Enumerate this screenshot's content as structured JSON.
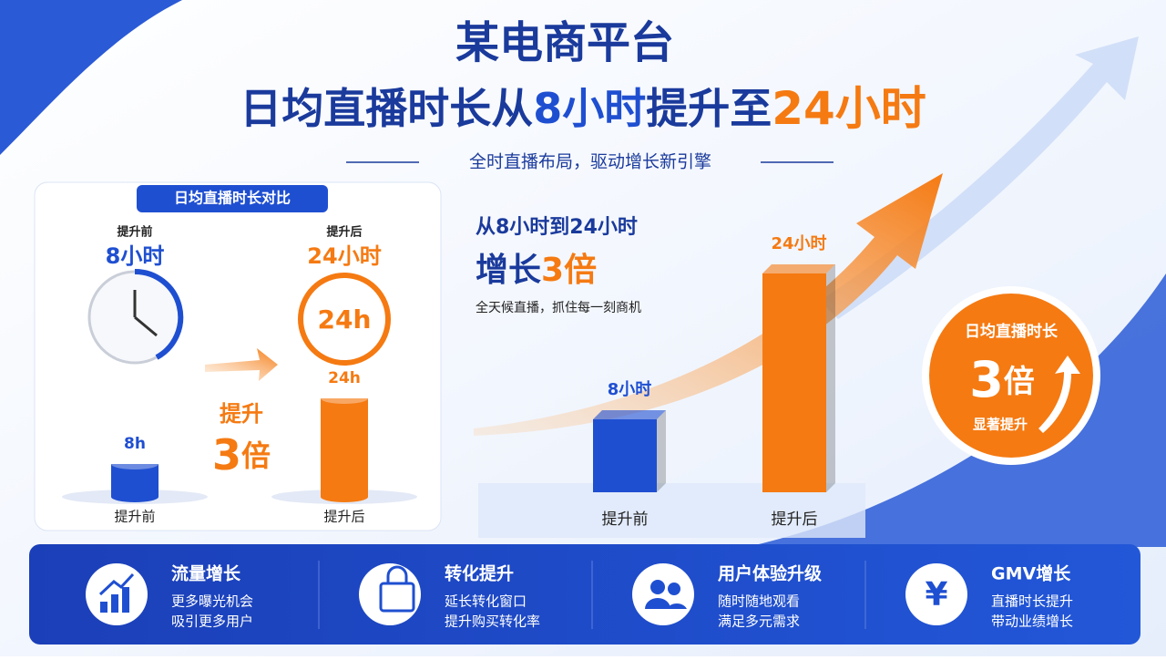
{
  "header": {
    "title": "某电商平台",
    "headline": [
      "日均直播时长从",
      "8小时",
      "提升至",
      "24小时"
    ],
    "subtitle": "全时直播布局，驱动增长新引擎"
  },
  "left_panel": {
    "title": "日均直播时长对比",
    "before_label": "提升前",
    "before_time": "8小时",
    "after_label": "提升后",
    "after_time": "24小时",
    "clock_text": "24h",
    "lift_word": "提升",
    "lift_number": "3",
    "lift_unit": "倍",
    "chart": {
      "type": "bar",
      "categories": [
        "提升前",
        "提升后"
      ],
      "values": [
        8,
        24
      ],
      "value_labels": [
        "8h",
        "24h"
      ],
      "colors": [
        "#1f4fd1",
        "#f57a12"
      ]
    }
  },
  "right_panel": {
    "heading": "从8小时到24小时",
    "growth_word": "增长",
    "growth_value": "3倍",
    "caption": "全天候直播，抓住每一刻商机",
    "chart": {
      "type": "bar",
      "categories": [
        "提升前",
        "提升后"
      ],
      "values": [
        8,
        24
      ],
      "value_labels": [
        "8小时",
        "24小时"
      ],
      "colors": [
        "#1f4fd1",
        "#f57a12"
      ]
    }
  },
  "badge": {
    "title": "日均直播时长",
    "number": "3",
    "unit": "倍",
    "caption": "显著提升"
  },
  "features": [
    {
      "title": "流量增长",
      "lines": [
        "更多曝光机会",
        "吸引更多用户"
      ]
    },
    {
      "title": "转化提升",
      "lines": [
        "延长转化窗口",
        "提升购买转化率"
      ]
    },
    {
      "title": "用户体验升级",
      "lines": [
        "随时随地观看",
        "满足多元需求"
      ]
    },
    {
      "title": "GMV增长",
      "lines": [
        "直播时长提升",
        "带动业绩增长"
      ]
    }
  ]
}
